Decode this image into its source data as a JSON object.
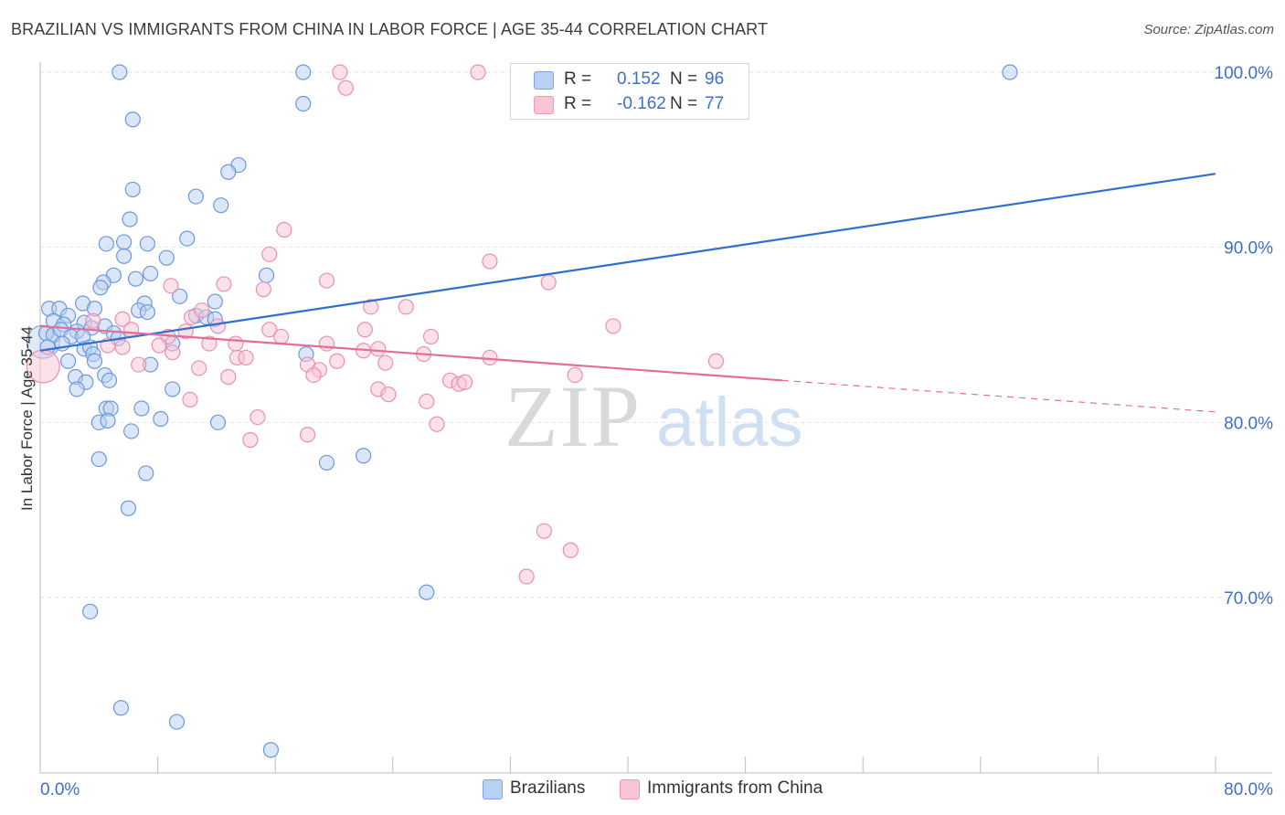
{
  "title": "BRAZILIAN VS IMMIGRANTS FROM CHINA IN LABOR FORCE | AGE 35-44 CORRELATION CHART",
  "source": "Source: ZipAtlas.com",
  "watermark": {
    "zip": "ZIP",
    "atlas": "atlas"
  },
  "legend": {
    "series": [
      {
        "r_label": "R =",
        "r_value": "0.152",
        "n_label": "N =",
        "n_value": "96",
        "fill": "#b8d0f2",
        "stroke": "#7da5e0"
      },
      {
        "r_label": "R =",
        "r_value": "-0.162",
        "n_label": "N =",
        "n_value": "77",
        "fill": "#f9c4d4",
        "stroke": "#ee9ab4"
      }
    ]
  },
  "bottom_legend": [
    "Brazilians",
    "Immigrants from China"
  ],
  "chart_data": {
    "type": "scatter",
    "title": "BRAZILIAN VS IMMIGRANTS FROM CHINA IN LABOR FORCE | AGE 35-44 CORRELATION CHART",
    "xlabel": "",
    "ylabel": "In Labor Force | Age 35-44",
    "xlim": [
      0,
      80
    ],
    "ylim": [
      60.5,
      101.5
    ],
    "x_tick_labels": [
      "0.0%",
      "80.0%"
    ],
    "y_ticks": [
      70,
      80,
      90,
      100
    ],
    "y_tick_labels": [
      "70.0%",
      "80.0%",
      "90.0%",
      "100.0%"
    ],
    "grid": true,
    "colors": {
      "blue_fill": "#b8d0f2",
      "blue_stroke": "#6b98dc",
      "blue_line": "#2f6fd0",
      "pink_fill": "#f9c4d4",
      "pink_stroke": "#ec8fae",
      "pink_line": "#e46d98"
    },
    "series": [
      {
        "name": "Brazilians",
        "color": "blue",
        "trend": {
          "x": [
            0,
            80
          ],
          "y": [
            84.1,
            94.2
          ],
          "dashed_from": null
        },
        "points": [
          [
            5.4,
            100
          ],
          [
            17.9,
            100
          ],
          [
            66,
            100
          ],
          [
            17.9,
            98.2
          ],
          [
            6.3,
            97.3
          ],
          [
            13.5,
            94.7
          ],
          [
            12.8,
            94.3
          ],
          [
            6.3,
            93.3
          ],
          [
            10.6,
            92.9
          ],
          [
            12.3,
            92.4
          ],
          [
            6.1,
            91.6
          ],
          [
            10,
            90.5
          ],
          [
            4.5,
            90.2
          ],
          [
            5.7,
            90.3
          ],
          [
            7.3,
            90.2
          ],
          [
            5.7,
            89.5
          ],
          [
            8.6,
            89.4
          ],
          [
            5.0,
            88.4
          ],
          [
            7.5,
            88.5
          ],
          [
            15.4,
            88.4
          ],
          [
            6.5,
            88.2
          ],
          [
            4.3,
            88.0
          ],
          [
            4.1,
            87.7
          ],
          [
            9.5,
            87.2
          ],
          [
            11.9,
            86.9
          ],
          [
            2.9,
            86.8
          ],
          [
            7.1,
            86.8
          ],
          [
            0.6,
            86.5
          ],
          [
            1.3,
            86.5
          ],
          [
            3.7,
            86.5
          ],
          [
            6.7,
            86.4
          ],
          [
            7.3,
            86.3
          ],
          [
            10.6,
            86.1
          ],
          [
            11.3,
            86.0
          ],
          [
            11.9,
            85.9
          ],
          [
            1.9,
            86.1
          ],
          [
            0.9,
            85.8
          ],
          [
            1.6,
            85.6
          ],
          [
            3.0,
            85.7
          ],
          [
            2.5,
            85.2
          ],
          [
            3.5,
            85.4
          ],
          [
            4.4,
            85.5
          ],
          [
            0.4,
            85.1
          ],
          [
            0.9,
            85.0
          ],
          [
            1.4,
            85.3
          ],
          [
            2.1,
            84.9
          ],
          [
            2.9,
            84.9
          ],
          [
            5.0,
            85.1
          ],
          [
            5.3,
            84.8
          ],
          [
            9.0,
            84.5
          ],
          [
            0.5,
            84.3
          ],
          [
            1.5,
            84.5
          ],
          [
            3.0,
            84.2
          ],
          [
            3.4,
            84.3
          ],
          [
            3.6,
            83.9
          ],
          [
            1.9,
            83.5
          ],
          [
            3.7,
            83.5
          ],
          [
            7.5,
            83.3
          ],
          [
            18.1,
            83.9
          ],
          [
            2.4,
            82.6
          ],
          [
            4.4,
            82.7
          ],
          [
            3.1,
            82.3
          ],
          [
            4.7,
            82.4
          ],
          [
            2.5,
            81.9
          ],
          [
            9.0,
            81.9
          ],
          [
            4.5,
            80.8
          ],
          [
            4.8,
            80.8
          ],
          [
            6.9,
            80.8
          ],
          [
            4.0,
            80.0
          ],
          [
            4.6,
            80.1
          ],
          [
            8.2,
            80.2
          ],
          [
            12.1,
            80.0
          ],
          [
            6.2,
            79.5
          ],
          [
            4.0,
            77.9
          ],
          [
            22.0,
            78.1
          ],
          [
            19.5,
            77.7
          ],
          [
            7.2,
            77.1
          ],
          [
            6.0,
            75.1
          ],
          [
            26.3,
            70.3
          ],
          [
            3.4,
            69.2
          ],
          [
            5.5,
            63.7
          ],
          [
            9.3,
            62.9
          ],
          [
            15.7,
            61.3
          ]
        ]
      },
      {
        "name": "Immigrants from China",
        "color": "pink",
        "trend": {
          "x": [
            0,
            50.5
          ],
          "y": [
            85.5,
            82.4
          ],
          "dashed_from": 50.5,
          "dashed_to": [
            80,
            80.6
          ]
        },
        "points": [
          [
            20.4,
            100
          ],
          [
            29.8,
            100
          ],
          [
            20.8,
            99.1
          ],
          [
            16.6,
            91.0
          ],
          [
            15.6,
            89.6
          ],
          [
            30.6,
            89.2
          ],
          [
            34.6,
            88.0
          ],
          [
            19.5,
            88.1
          ],
          [
            12.5,
            87.9
          ],
          [
            8.9,
            87.8
          ],
          [
            15.2,
            87.6
          ],
          [
            22.5,
            86.6
          ],
          [
            24.9,
            86.6
          ],
          [
            5.6,
            85.9
          ],
          [
            10.3,
            86.0
          ],
          [
            11.0,
            86.4
          ],
          [
            3.6,
            85.8
          ],
          [
            12.1,
            85.5
          ],
          [
            15.6,
            85.3
          ],
          [
            22.1,
            85.3
          ],
          [
            39.0,
            85.5
          ],
          [
            6.2,
            85.3
          ],
          [
            9.9,
            85.2
          ],
          [
            8.7,
            84.9
          ],
          [
            16.4,
            84.9
          ],
          [
            26.6,
            84.9
          ],
          [
            4.6,
            84.4
          ],
          [
            5.6,
            84.3
          ],
          [
            8.1,
            84.4
          ],
          [
            11.5,
            84.5
          ],
          [
            13.3,
            84.5
          ],
          [
            19.5,
            84.5
          ],
          [
            22.0,
            84.1
          ],
          [
            23.0,
            84.2
          ],
          [
            9.0,
            84.0
          ],
          [
            13.4,
            83.7
          ],
          [
            14.0,
            83.7
          ],
          [
            26.1,
            83.9
          ],
          [
            30.6,
            83.7
          ],
          [
            20.2,
            83.5
          ],
          [
            23.5,
            83.4
          ],
          [
            18.2,
            83.3
          ],
          [
            19.0,
            83.0
          ],
          [
            6.7,
            83.3
          ],
          [
            10.8,
            83.1
          ],
          [
            46.0,
            83.5
          ],
          [
            36.4,
            82.7
          ],
          [
            18.6,
            82.7
          ],
          [
            12.8,
            82.6
          ],
          [
            27.9,
            82.4
          ],
          [
            28.5,
            82.2
          ],
          [
            28.9,
            82.3
          ],
          [
            23.0,
            81.9
          ],
          [
            23.7,
            81.6
          ],
          [
            26.3,
            81.2
          ],
          [
            10.2,
            81.3
          ],
          [
            14.8,
            80.3
          ],
          [
            27.0,
            79.9
          ],
          [
            14.3,
            79.0
          ],
          [
            18.2,
            79.3
          ],
          [
            34.3,
            73.8
          ],
          [
            36.1,
            72.7
          ],
          [
            33.1,
            71.2
          ],
          [
            0.2,
            83.2
          ]
        ]
      }
    ]
  }
}
